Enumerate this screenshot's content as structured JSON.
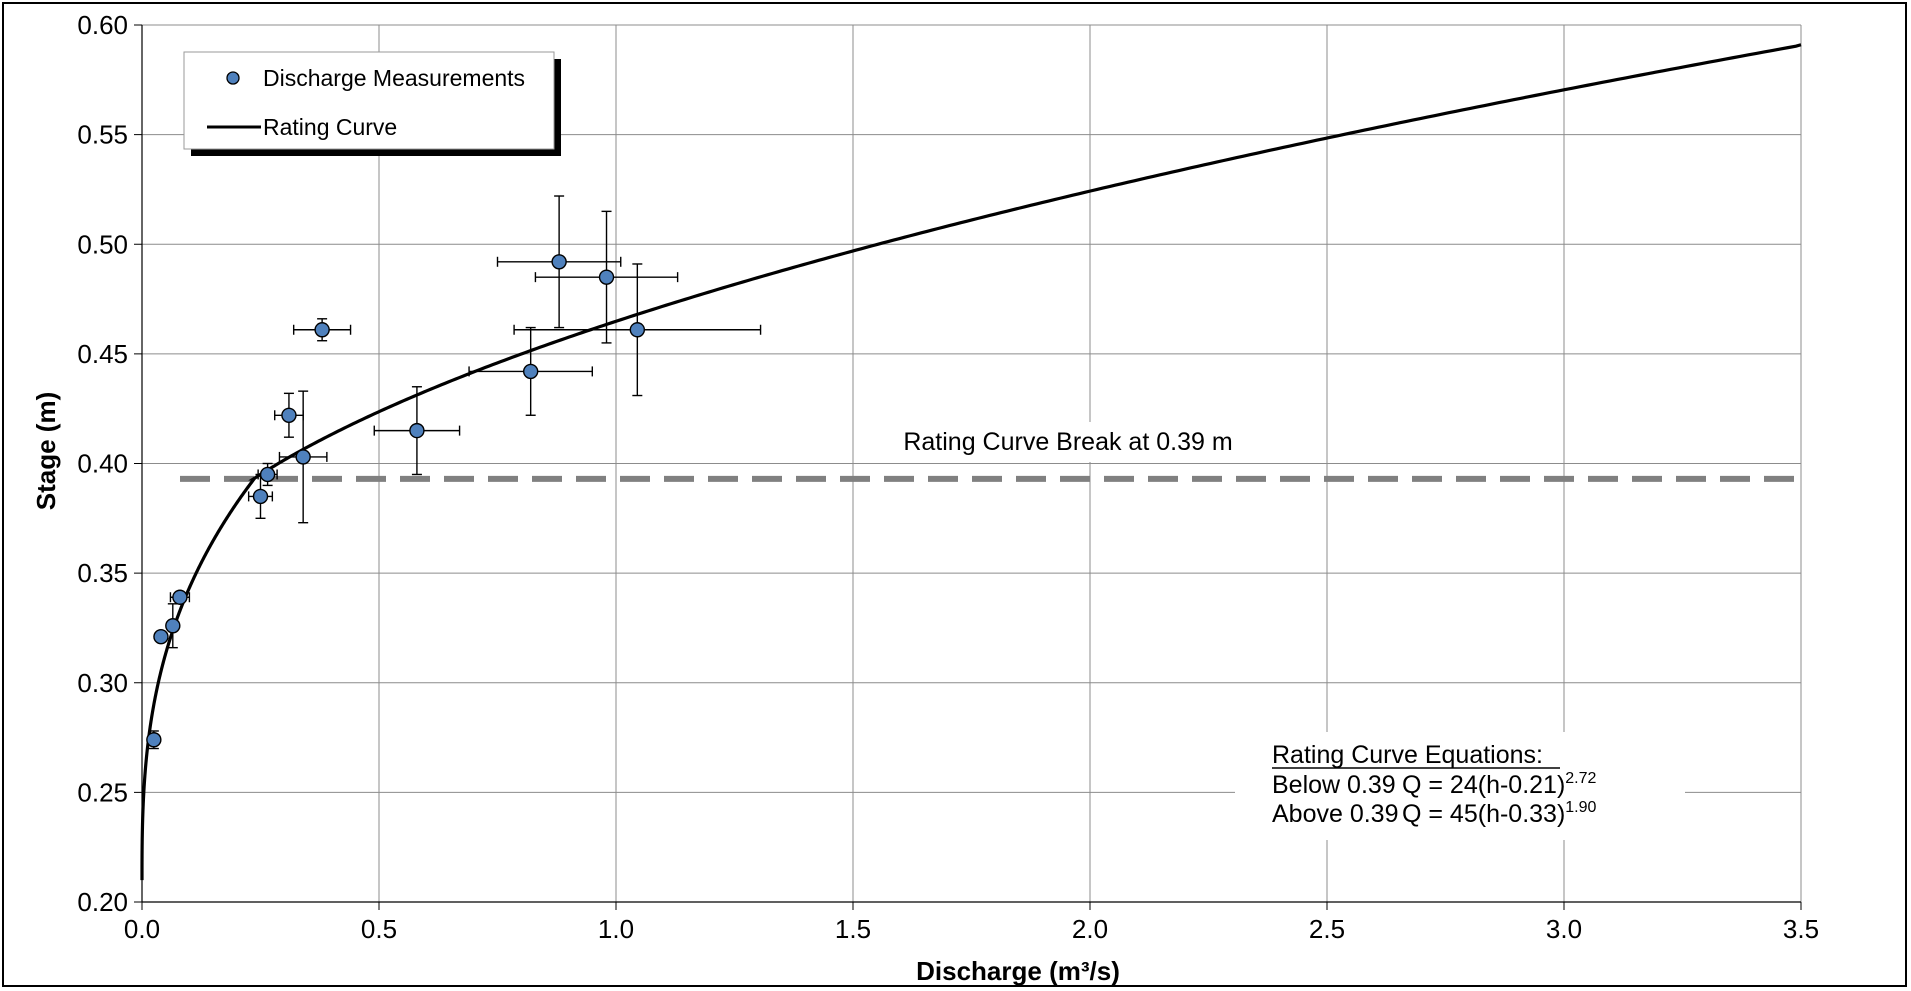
{
  "chart_data": {
    "type": "scatter",
    "xlabel": "Discharge (m³/s)",
    "ylabel": "Stage (m)",
    "xlim": [
      0,
      3.5
    ],
    "ylim": [
      0.2,
      0.6
    ],
    "x_ticks": [
      "0.0",
      "0.5",
      "1.0",
      "1.5",
      "2.0",
      "2.5",
      "3.0",
      "3.5"
    ],
    "y_ticks": [
      "0.20",
      "0.25",
      "0.30",
      "0.35",
      "0.40",
      "0.45",
      "0.50",
      "0.55",
      "0.60"
    ],
    "grid": true,
    "legend": {
      "placement": "top-left",
      "entries": [
        "Discharge Measurements",
        "Rating Curve"
      ]
    },
    "series": [
      {
        "name": "Discharge Measurements",
        "kind": "scatter-errorbars",
        "color": "#4f81bd",
        "points": [
          {
            "x": 0.025,
            "y": 0.274,
            "xerr": 0.0,
            "yerr": 0.004
          },
          {
            "x": 0.04,
            "y": 0.321,
            "xerr": 0.0,
            "yerr": 0.0
          },
          {
            "x": 0.065,
            "y": 0.326,
            "xerr": 0.0,
            "yerr": 0.01
          },
          {
            "x": 0.08,
            "y": 0.339,
            "xerr": 0.02,
            "yerr": 0.0
          },
          {
            "x": 0.25,
            "y": 0.385,
            "xerr": 0.025,
            "yerr": 0.01
          },
          {
            "x": 0.265,
            "y": 0.395,
            "xerr": 0.02,
            "yerr": 0.005
          },
          {
            "x": 0.31,
            "y": 0.422,
            "xerr": 0.03,
            "yerr": 0.01
          },
          {
            "x": 0.34,
            "y": 0.403,
            "xerr": 0.05,
            "yerr": 0.03
          },
          {
            "x": 0.38,
            "y": 0.461,
            "xerr": 0.06,
            "yerr": 0.005
          },
          {
            "x": 0.58,
            "y": 0.415,
            "xerr": 0.09,
            "yerr": 0.02
          },
          {
            "x": 0.82,
            "y": 0.442,
            "xerr": 0.13,
            "yerr": 0.02
          },
          {
            "x": 0.88,
            "y": 0.492,
            "xerr": 0.13,
            "yerr": 0.03
          },
          {
            "x": 0.98,
            "y": 0.485,
            "xerr": 0.15,
            "yerr": 0.03
          },
          {
            "x": 1.045,
            "y": 0.461,
            "xerr": 0.26,
            "yerr": 0.03
          }
        ]
      },
      {
        "name": "Rating Curve",
        "kind": "line",
        "color": "#000000",
        "segments": [
          {
            "a": 24,
            "h0": 0.21,
            "b": 2.72,
            "h_from": 0.21,
            "h_to": 0.393
          },
          {
            "a": 45,
            "h0": 0.33,
            "b": 1.9,
            "h_from": 0.393,
            "h_to": 0.591
          }
        ]
      }
    ],
    "reference_line": {
      "y": 0.393,
      "style": "dashed",
      "color": "#808080",
      "label": "Rating Curve Break at 0.39 m"
    },
    "equations_box": {
      "title": "Rating Curve Equations:",
      "lines": [
        {
          "range": "Below 0.39",
          "eq": "Q = 24(h-0.21)",
          "exp": "2.72"
        },
        {
          "range": "Above 0.39",
          "eq": "Q = 45(h-0.33)",
          "exp": "1.90"
        }
      ]
    }
  }
}
